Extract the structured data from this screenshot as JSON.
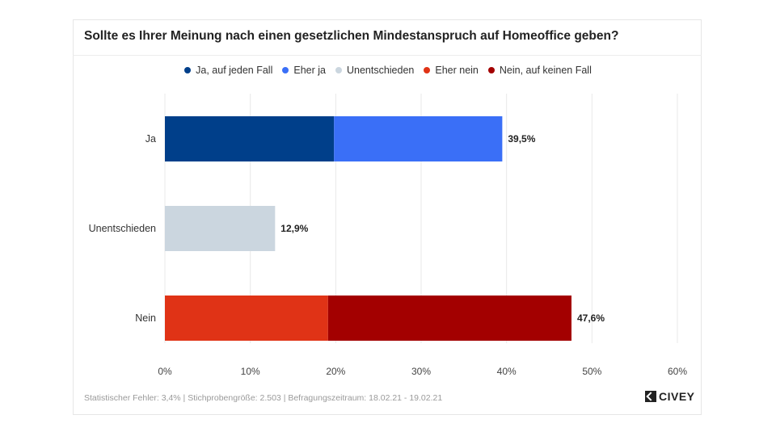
{
  "title": "Sollte es Ihrer Meinung nach einen gesetzlichen Mindestanspruch auf Homeoffice geben?",
  "legend": [
    {
      "label": "Ja, auf jeden Fall",
      "color": "#003f8a"
    },
    {
      "label": "Eher ja",
      "color": "#3a6ff7"
    },
    {
      "label": "Unentschieden",
      "color": "#cbd6df"
    },
    {
      "label": "Eher nein",
      "color": "#e03316"
    },
    {
      "label": "Nein, auf keinen Fall",
      "color": "#a30000"
    }
  ],
  "chart_data": {
    "type": "bar",
    "orientation": "horizontal",
    "stacked": true,
    "categories": [
      "Ja",
      "Unentschieden",
      "Nein"
    ],
    "series": [
      {
        "name": "Ja, auf jeden Fall",
        "color": "#003f8a",
        "values": [
          19.8,
          0,
          0
        ]
      },
      {
        "name": "Eher ja",
        "color": "#3a6ff7",
        "values": [
          19.7,
          0,
          0
        ]
      },
      {
        "name": "Unentschieden",
        "color": "#cbd6df",
        "values": [
          0,
          12.9,
          0
        ]
      },
      {
        "name": "Eher nein",
        "color": "#e03316",
        "values": [
          0,
          0,
          19.1
        ]
      },
      {
        "name": "Nein, auf keinen Fall",
        "color": "#a30000",
        "values": [
          0,
          0,
          28.5
        ]
      }
    ],
    "totals_labels": [
      "39,5%",
      "12,9%",
      "47,6%"
    ],
    "xlim": [
      0,
      60
    ],
    "xticks": [
      "0%",
      "10%",
      "20%",
      "30%",
      "40%",
      "50%",
      "60%"
    ],
    "grid": true,
    "legend_position": "top-center"
  },
  "footer": "Statistischer Fehler: 3,4% | Stichprobengröße: 2.503 | Befragungszeitraum: 18.02.21 - 19.02.21",
  "brand": "CIVEY"
}
